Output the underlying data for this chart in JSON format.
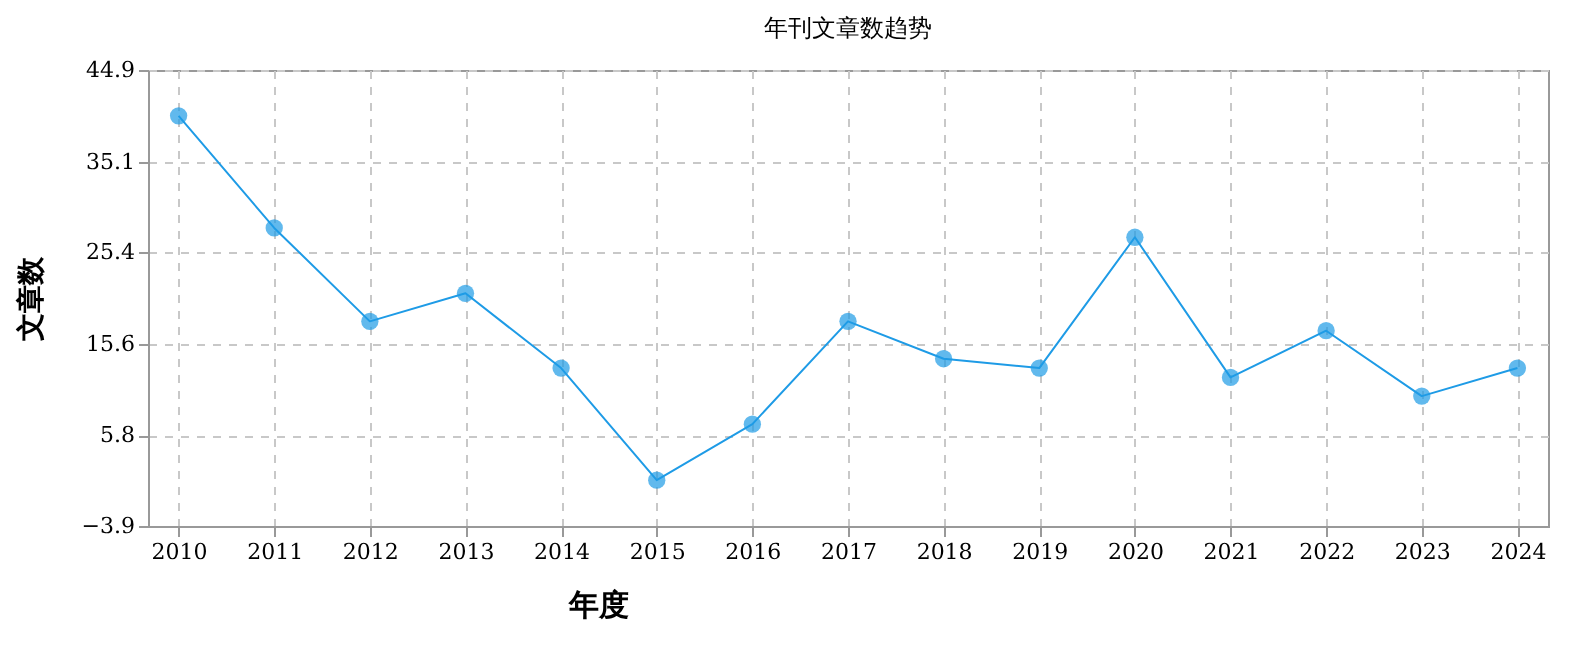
{
  "chart_data": {
    "type": "line",
    "title": "年刊文章数趋势",
    "xlabel": "年度",
    "ylabel": "文章数",
    "categories": [
      "2010",
      "2011",
      "2012",
      "2013",
      "2014",
      "2015",
      "2016",
      "2017",
      "2018",
      "2019",
      "2020",
      "2021",
      "2022",
      "2023",
      "2024"
    ],
    "series": [
      {
        "color": "#1e9be6",
        "values": [
          40,
          28,
          18,
          21,
          13,
          1,
          7,
          18,
          14,
          13,
          27,
          12,
          17,
          10,
          13
        ]
      }
    ],
    "ylim": [
      -3.9,
      44.9
    ],
    "yticks": [
      -3.9,
      5.8,
      15.6,
      25.4,
      35.1,
      44.9
    ],
    "grid": true,
    "marker": "circle",
    "line_style": "solid"
  }
}
